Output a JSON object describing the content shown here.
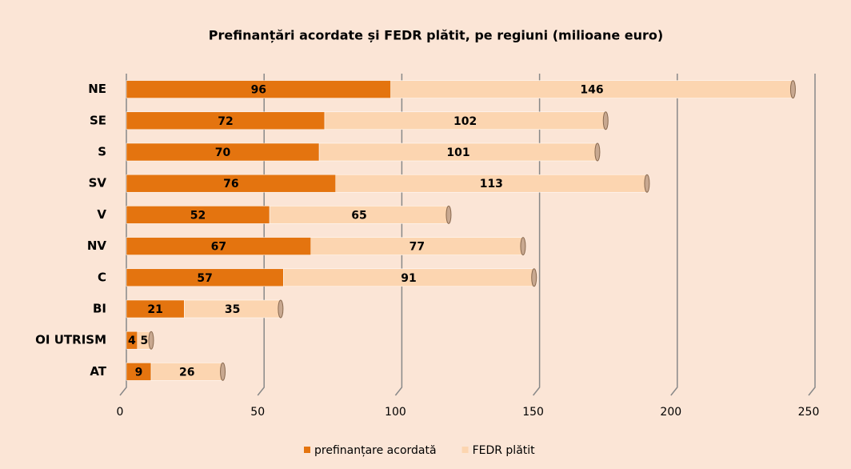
{
  "chart_data": {
    "type": "bar",
    "orientation": "horizontal",
    "stacked": true,
    "title": "Prefinanțări acordate și FEDR plătit, pe regiuni (milioane euro)",
    "categories": [
      "NE",
      "SE",
      "S",
      "SV",
      "V",
      "NV",
      "C",
      "BI",
      "OI UTRISM",
      "AT"
    ],
    "series": [
      {
        "name": "prefinanțare acordată",
        "color": "#e4740f",
        "values": [
          96,
          72,
          70,
          76,
          52,
          67,
          57,
          21,
          4,
          9
        ]
      },
      {
        "name": "FEDR plătit",
        "color": "#fcd5b0",
        "values": [
          146,
          102,
          101,
          113,
          65,
          77,
          91,
          35,
          5,
          26
        ]
      }
    ],
    "xlim": [
      0,
      250
    ],
    "xticks": [
      0,
      50,
      100,
      150,
      200,
      250
    ],
    "grid": true,
    "legend": "bottom"
  }
}
